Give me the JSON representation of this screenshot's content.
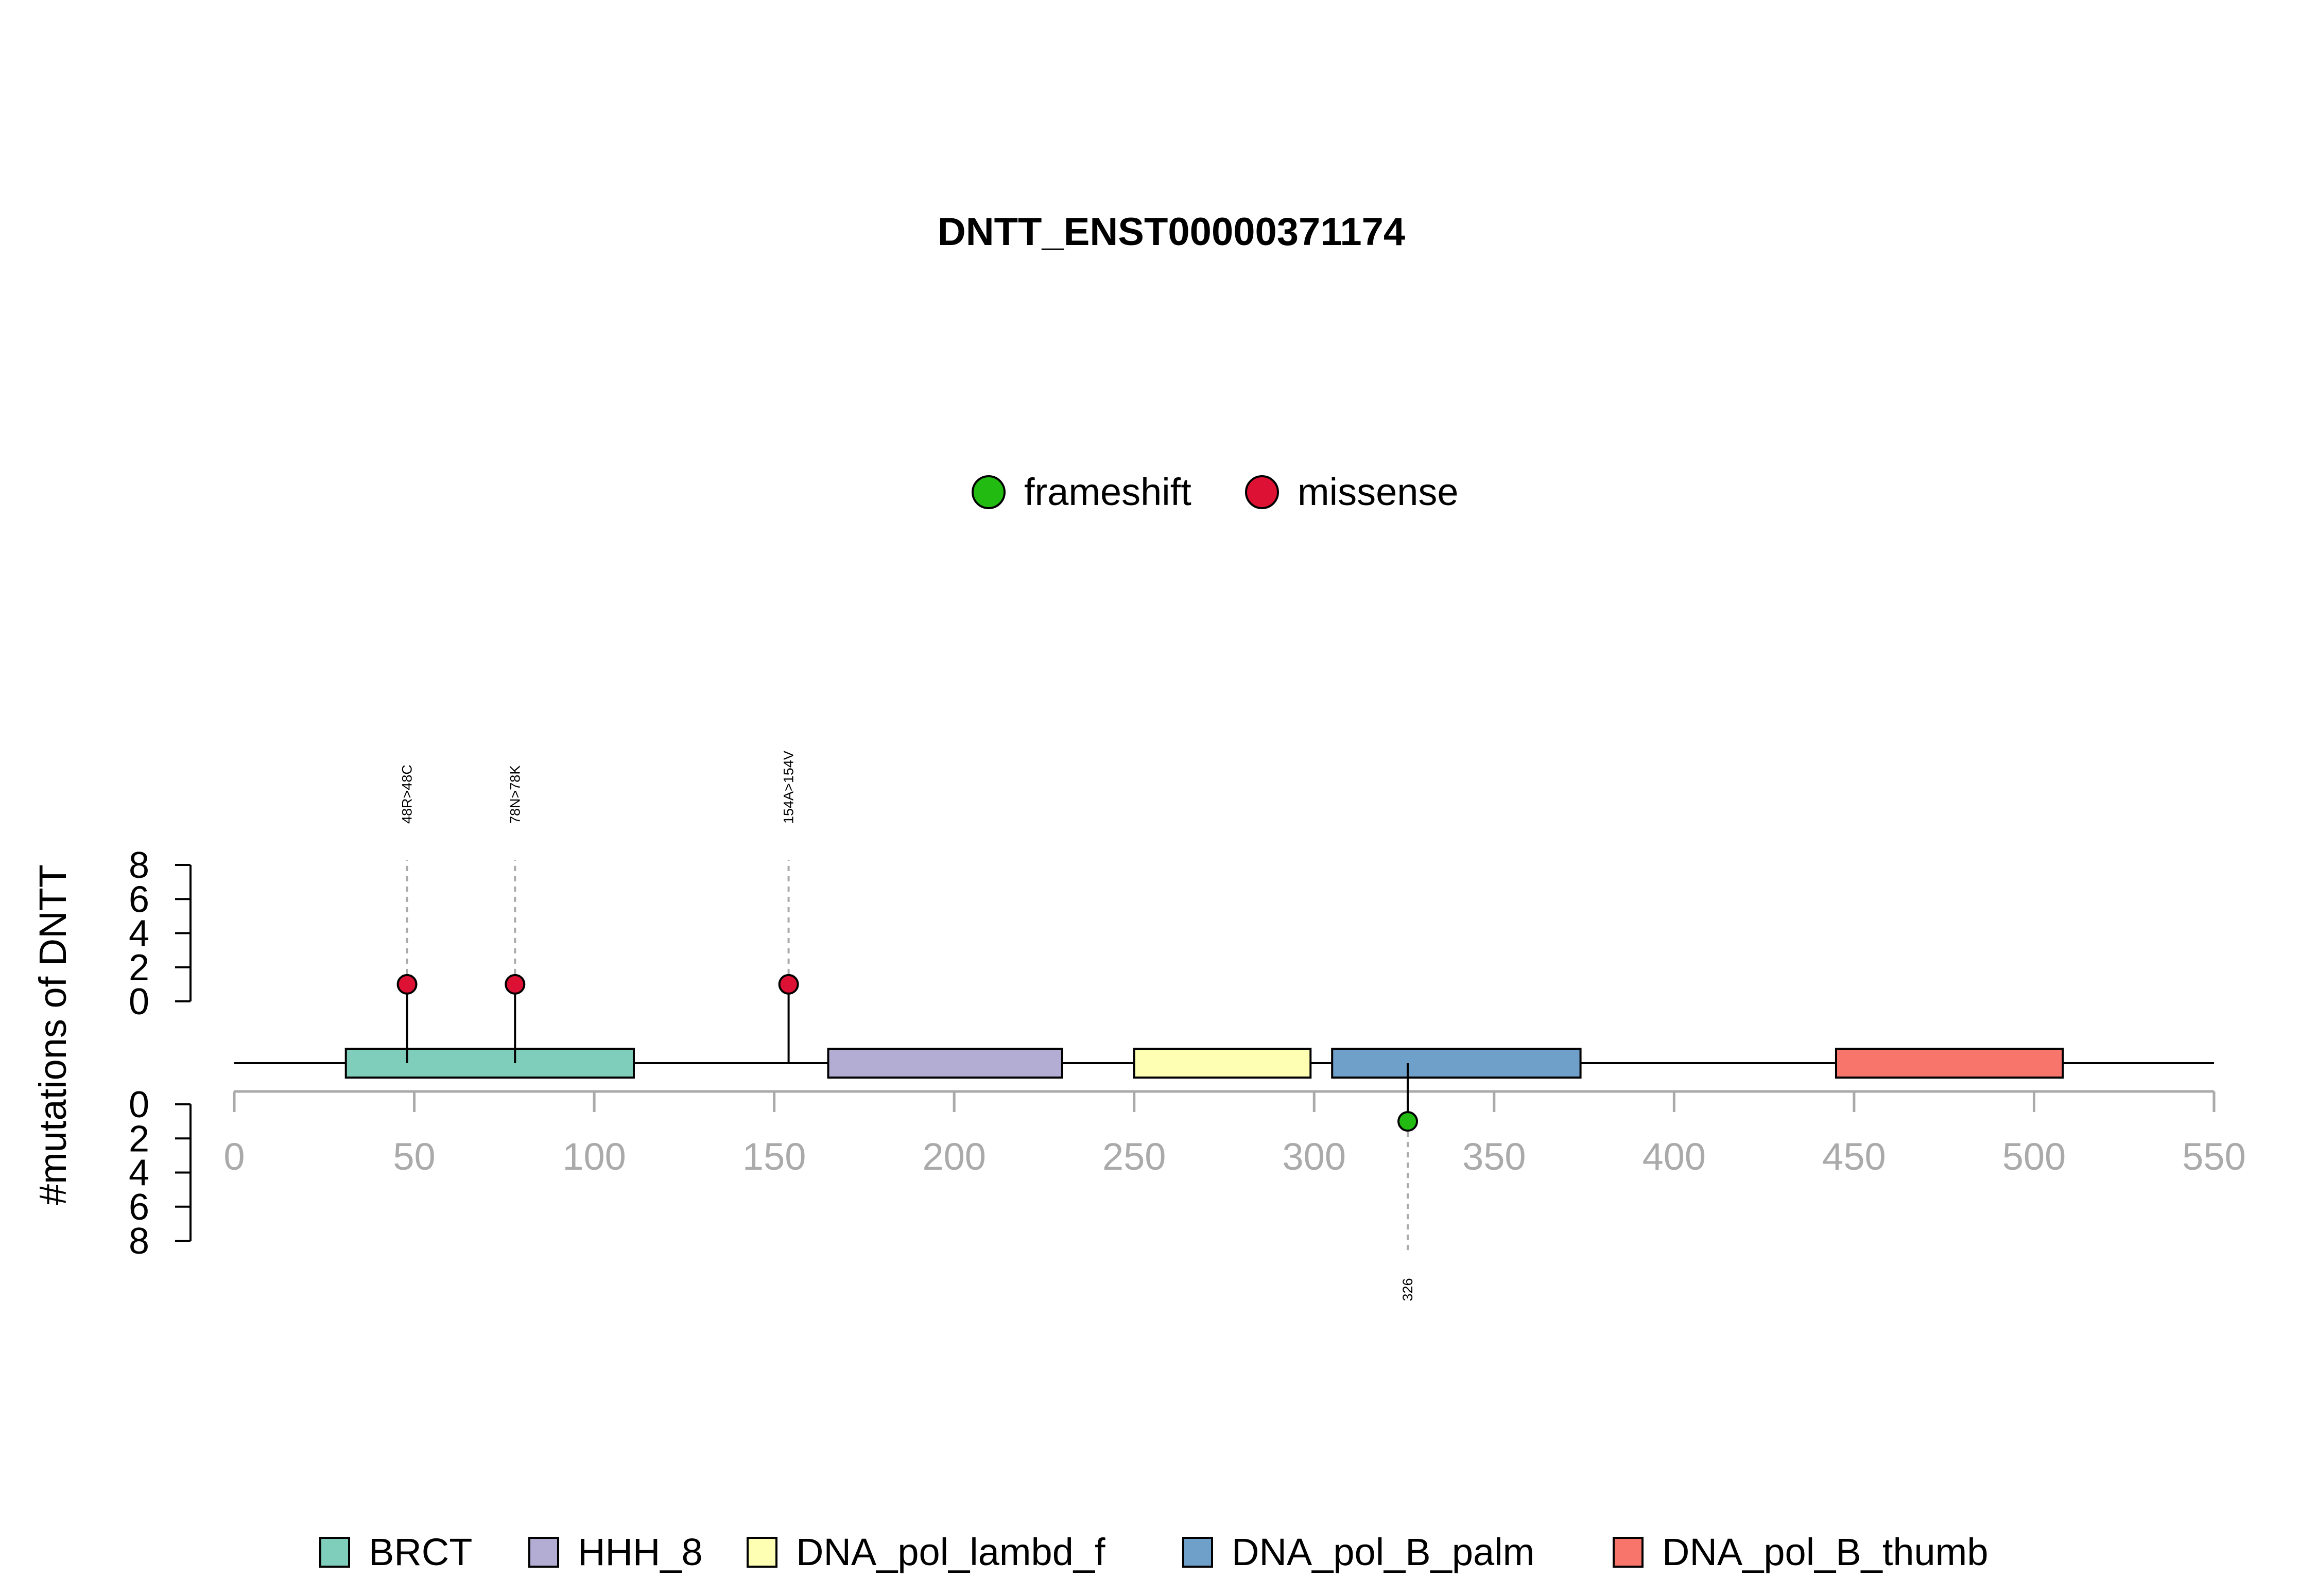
{
  "chart_data": {
    "type": "lollipop",
    "title": "DNTT_ENST00000371174",
    "ylabel": "#mutations of DNTT",
    "x_axis": {
      "range": [
        0,
        550
      ],
      "ticks": [
        0,
        50,
        100,
        150,
        200,
        250,
        300,
        350,
        400,
        450,
        500,
        550
      ]
    },
    "y_axis_top": {
      "range": [
        0,
        8
      ],
      "ticks": [
        0,
        2,
        4,
        6,
        8
      ]
    },
    "y_axis_bottom": {
      "range": [
        0,
        8
      ],
      "ticks": [
        0,
        2,
        4,
        6,
        8
      ]
    },
    "protein_length": 550,
    "mutation_legend": [
      {
        "label": "frameshift",
        "color": "#22BB11"
      },
      {
        "label": "missense",
        "color": "#DD1133"
      }
    ],
    "domains": [
      {
        "name": "BRCT",
        "start": 31,
        "end": 111,
        "color": "#7FCDBB"
      },
      {
        "name": "HHH_8",
        "start": 165,
        "end": 230,
        "color": "#B3ADD3"
      },
      {
        "name": "DNA_pol_lambd_f",
        "start": 250,
        "end": 299,
        "color": "#FFFFB3"
      },
      {
        "name": "DNA_pol_B_palm",
        "start": 305,
        "end": 374,
        "color": "#6FA0CA"
      },
      {
        "name": "DNA_pol_B_thumb",
        "start": 445,
        "end": 508,
        "color": "#F8756B"
      }
    ],
    "mutations": [
      {
        "position": 48,
        "count": 1,
        "type": "missense",
        "side": "top",
        "label": "48R>48C"
      },
      {
        "position": 78,
        "count": 1,
        "type": "missense",
        "side": "top",
        "label": "78N>78K"
      },
      {
        "position": 154,
        "count": 1,
        "type": "missense",
        "side": "top",
        "label": "154A>154V"
      },
      {
        "position": 326,
        "count": 1,
        "type": "frameshift",
        "side": "bottom",
        "label": "326"
      }
    ]
  }
}
